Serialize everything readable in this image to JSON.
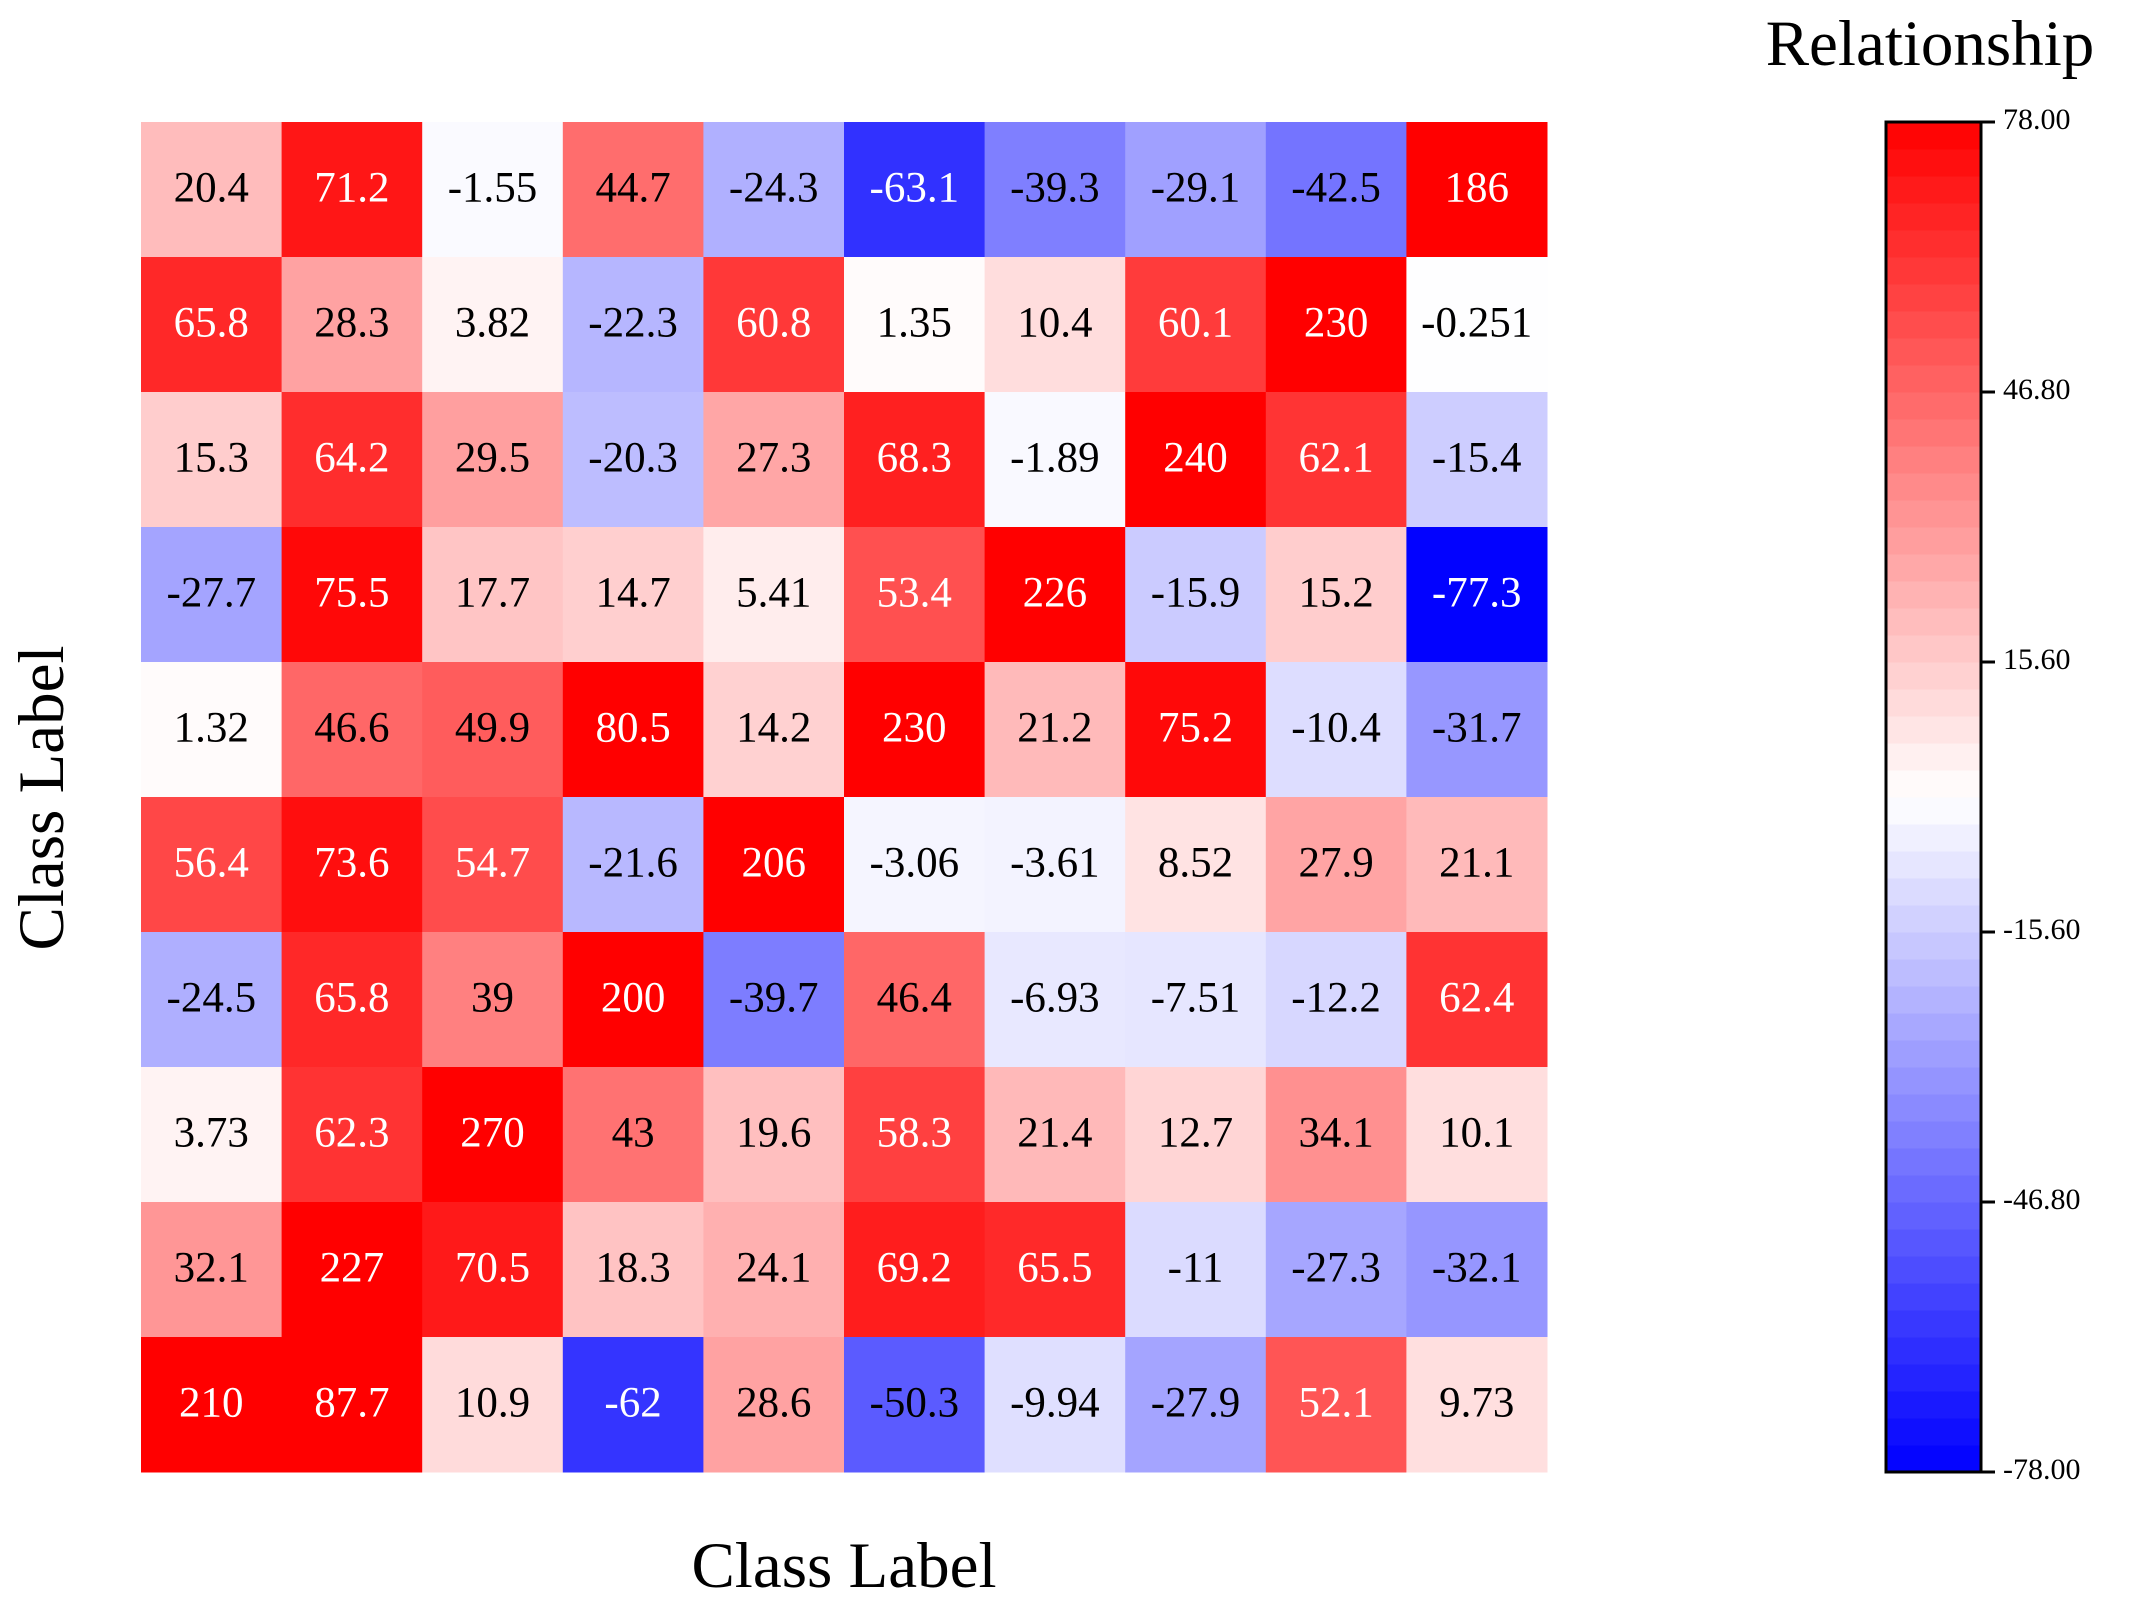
{
  "chart_data": {
    "type": "heatmap",
    "xlabel": "Class Label",
    "ylabel": "Class Label",
    "colorbar_title": "Relationship",
    "colors": [
      "#0000ff",
      "#ffffff",
      "#ff0000"
    ],
    "clim": [
      -78,
      78
    ],
    "cticks": [
      {
        "value": 78,
        "label": "78.00"
      },
      {
        "value": 46.8,
        "label": "46.80"
      },
      {
        "value": 15.6,
        "label": "15.60"
      },
      {
        "value": -15.6,
        "label": "-15.60"
      },
      {
        "value": -46.8,
        "label": "-46.80"
      },
      {
        "value": -78,
        "label": "-78.00"
      }
    ],
    "values": [
      [
        20.4,
        71.2,
        -1.55,
        44.7,
        -24.3,
        -63.1,
        -39.3,
        -29.1,
        -42.5,
        186
      ],
      [
        65.8,
        28.3,
        3.82,
        -22.3,
        60.8,
        1.35,
        10.4,
        60.1,
        230,
        -0.251
      ],
      [
        15.3,
        64.2,
        29.5,
        -20.3,
        27.3,
        68.3,
        -1.89,
        240,
        62.1,
        -15.4
      ],
      [
        -27.7,
        75.5,
        17.7,
        14.7,
        5.41,
        53.4,
        226,
        -15.9,
        15.2,
        -77.3
      ],
      [
        1.32,
        46.6,
        49.9,
        80.5,
        14.2,
        230,
        21.2,
        75.2,
        -10.4,
        -31.7
      ],
      [
        56.4,
        73.6,
        54.7,
        -21.6,
        206,
        -3.06,
        -3.61,
        8.52,
        27.9,
        21.1
      ],
      [
        -24.5,
        65.8,
        39,
        200,
        -39.7,
        46.4,
        -6.93,
        -7.51,
        -12.2,
        62.4
      ],
      [
        3.73,
        62.3,
        270,
        43,
        19.6,
        58.3,
        21.4,
        12.7,
        34.1,
        10.1
      ],
      [
        32.1,
        227,
        70.5,
        18.3,
        24.1,
        69.2,
        65.5,
        -11,
        -27.3,
        -32.1
      ],
      [
        210,
        87.7,
        10.9,
        -62,
        28.6,
        -50.3,
        -9.94,
        -27.9,
        52.1,
        9.73
      ]
    ]
  }
}
